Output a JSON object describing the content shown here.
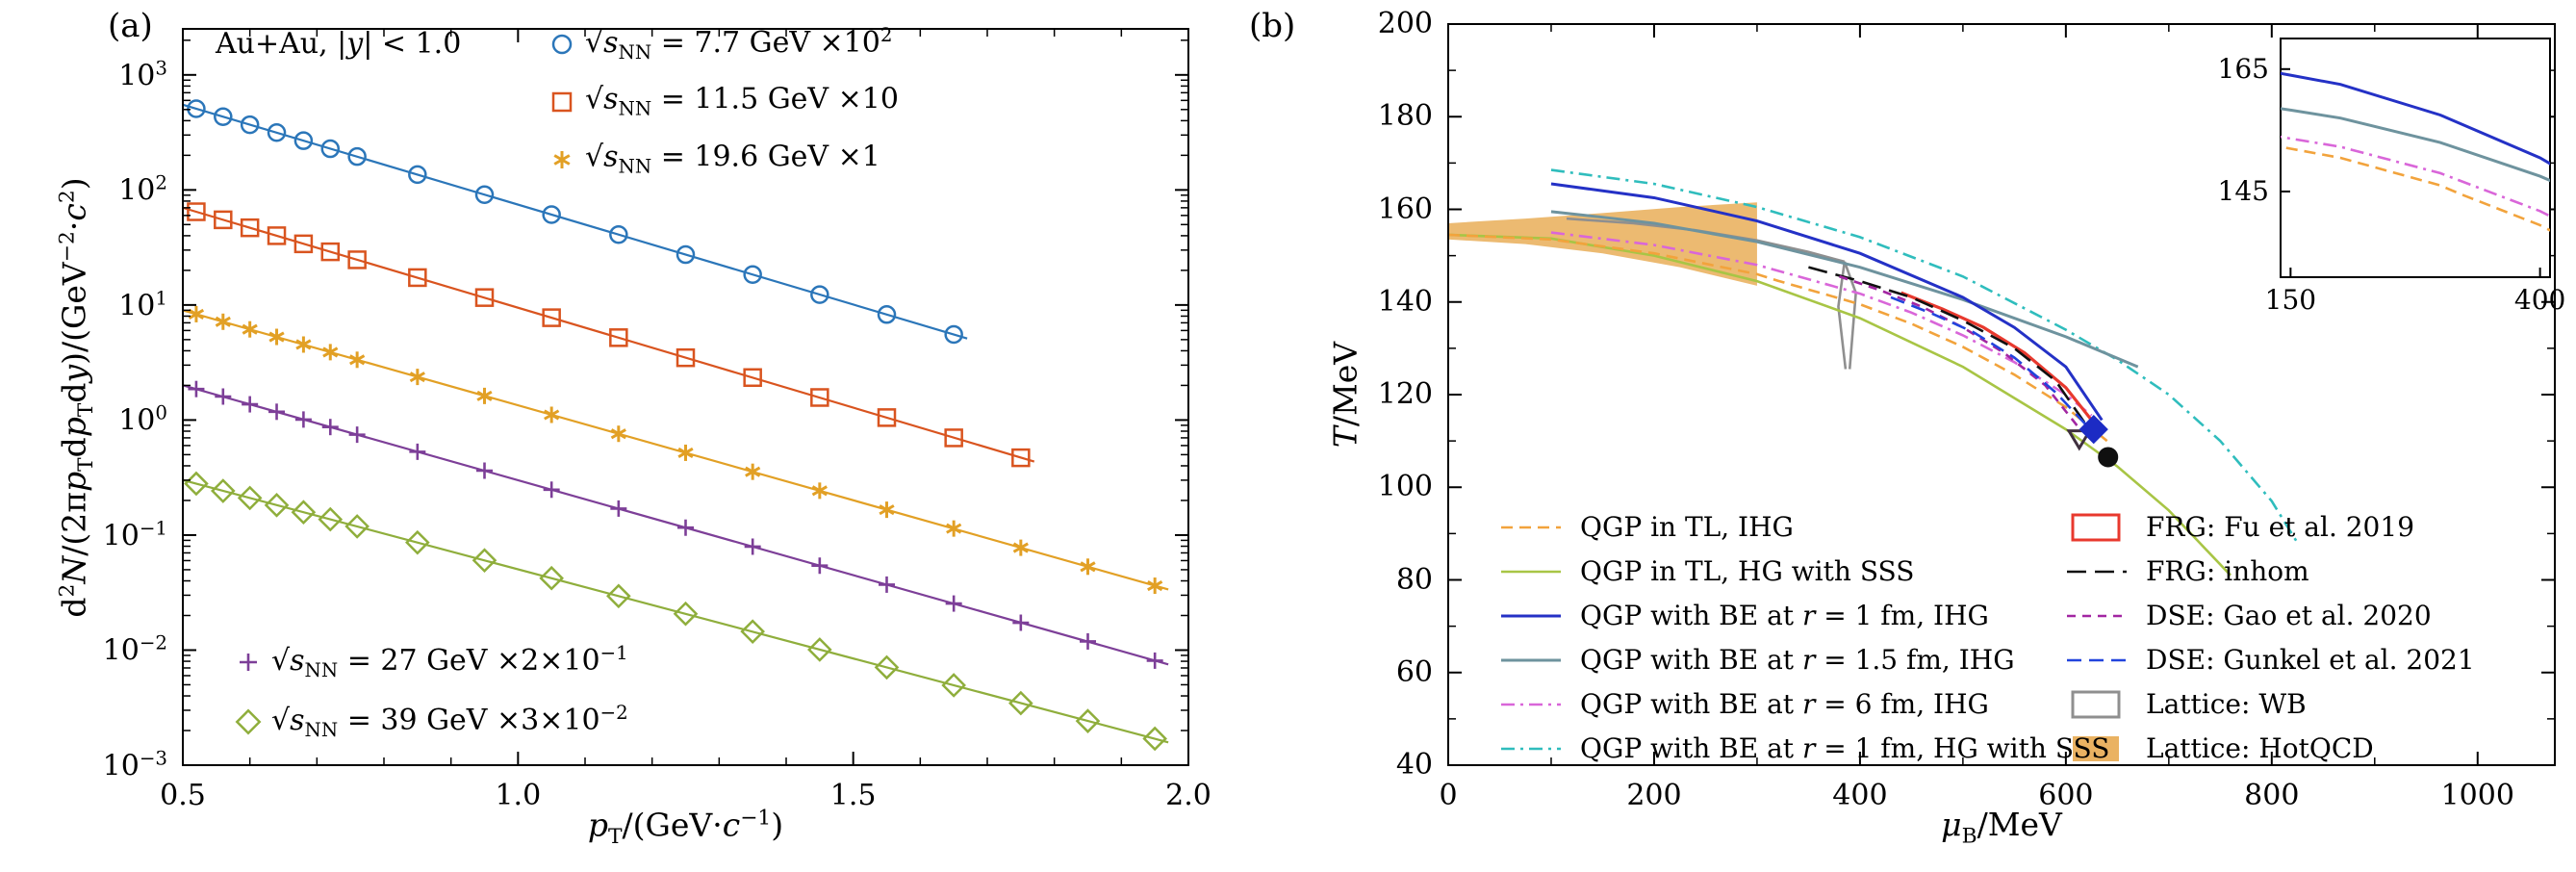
{
  "figure": {
    "panel_a_label": "(a)",
    "panel_b_label": "(b)"
  },
  "chart_data": [
    {
      "type": "scatter",
      "panel": "a",
      "annotation": "Au+Au, |*y*| < 1.0",
      "xlabel": "*p*_{T}/(GeV·*c*^{−1})",
      "ylabel": "d^{2}*N*/(2π*p*_{T}d*p*_{T}d*y*)/(GeV^{−2}·*c*^{2})",
      "xlim": [
        0.5,
        2.0
      ],
      "ylim_log10": [
        -3,
        3.4
      ],
      "grid": false,
      "xticks": [
        {
          "v": 0.5,
          "label": "0.5"
        },
        {
          "v": 1.0,
          "label": "1.0"
        },
        {
          "v": 1.5,
          "label": "1.5"
        },
        {
          "v": 2.0,
          "label": "2.0"
        }
      ],
      "yticks": [
        {
          "e": -3,
          "label": "10^{−3}"
        },
        {
          "e": -2,
          "label": "10^{−2}"
        },
        {
          "e": -1,
          "label": "10^{−1}"
        },
        {
          "e": 0,
          "label": "10^{0}"
        },
        {
          "e": 1,
          "label": "10^{1}"
        },
        {
          "e": 2,
          "label": "10^{2}"
        },
        {
          "e": 3,
          "label": "10^{3}"
        }
      ],
      "series": [
        {
          "key": "s77",
          "label": "√*s*_{NN} = 7.7 GeV ×10^{2}",
          "marker": "circle",
          "color": "#2b76b9",
          "x": [
            0.52,
            0.56,
            0.6,
            0.64,
            0.68,
            0.72,
            0.76,
            0.85,
            0.95,
            1.05,
            1.15,
            1.25,
            1.35,
            1.45,
            1.55,
            1.65
          ],
          "y": [
            508,
            433,
            369,
            315,
            268,
            228,
            195,
            136,
            91,
            61,
            40.9,
            27.4,
            18.4,
            12.3,
            8.26,
            5.54
          ],
          "fit": {
            "A": 4070,
            "b": 4.0,
            "x0": 0.5,
            "x1": 1.67
          }
        },
        {
          "key": "s115",
          "label": "√*s*_{NN} = 11.5 GeV ×10",
          "marker": "square",
          "color": "#d9541f",
          "x": [
            0.52,
            0.56,
            0.6,
            0.64,
            0.68,
            0.72,
            0.76,
            0.85,
            0.95,
            1.05,
            1.15,
            1.25,
            1.35,
            1.45,
            1.55,
            1.65,
            1.75
          ],
          "y": [
            64.6,
            55.0,
            46.9,
            40.0,
            34.0,
            29.0,
            24.7,
            17.3,
            11.6,
            7.75,
            5.2,
            3.48,
            2.34,
            1.57,
            1.05,
            0.7,
            0.47
          ],
          "fit": {
            "A": 517,
            "b": 4.0,
            "x0": 0.5,
            "x1": 1.77
          }
        },
        {
          "key": "s196",
          "label": "√*s*_{NN} = 19.6 GeV ×1",
          "marker": "asterisk",
          "color": "#e2a025",
          "x": [
            0.52,
            0.56,
            0.6,
            0.64,
            0.68,
            0.72,
            0.76,
            0.85,
            0.95,
            1.05,
            1.15,
            1.25,
            1.35,
            1.45,
            1.55,
            1.65,
            1.75,
            1.85,
            1.95
          ],
          "y": [
            8.32,
            7.15,
            6.14,
            5.28,
            4.53,
            3.89,
            3.34,
            2.37,
            1.62,
            1.11,
            0.759,
            0.519,
            0.355,
            0.243,
            0.166,
            0.114,
            0.0776,
            0.0531,
            0.0363
          ],
          "fit": {
            "A": 60,
            "b": 3.8,
            "x0": 0.5,
            "x1": 1.97
          }
        },
        {
          "key": "s27",
          "label": "√*s*_{NN} = 27 GeV ×2×10^{−1}",
          "marker": "plus",
          "color": "#7d3f98",
          "x": [
            0.52,
            0.56,
            0.6,
            0.64,
            0.68,
            0.72,
            0.76,
            0.85,
            0.95,
            1.05,
            1.15,
            1.25,
            1.35,
            1.45,
            1.55,
            1.65,
            1.75,
            1.85,
            1.95
          ],
          "y": [
            1.86,
            1.6,
            1.37,
            1.18,
            1.01,
            0.869,
            0.746,
            0.53,
            0.363,
            0.248,
            0.17,
            0.116,
            0.0793,
            0.0542,
            0.0371,
            0.0254,
            0.0173,
            0.0119,
            0.0081
          ],
          "fit": {
            "A": 13.4,
            "b": 3.8,
            "x0": 0.5,
            "x1": 1.97
          }
        },
        {
          "key": "s39",
          "label": "√*s*_{NN} = 39 GeV ×3×10^{−2}",
          "marker": "diamond",
          "color": "#8fae3c",
          "x": [
            0.52,
            0.56,
            0.6,
            0.64,
            0.68,
            0.72,
            0.76,
            0.85,
            0.95,
            1.05,
            1.15,
            1.25,
            1.35,
            1.45,
            1.55,
            1.65,
            1.75,
            1.85,
            1.95
          ],
          "y": [
            0.28,
            0.242,
            0.21,
            0.182,
            0.158,
            0.137,
            0.119,
            0.0862,
            0.0603,
            0.0422,
            0.0295,
            0.0207,
            0.0145,
            0.0101,
            0.00708,
            0.00495,
            0.00346,
            0.00242,
            0.0017
          ],
          "fit": {
            "A": 1.79,
            "b": 3.57,
            "x0": 0.5,
            "x1": 1.97
          }
        }
      ]
    },
    {
      "type": "line",
      "panel": "b",
      "xlabel": "*μ*_{B}/MeV",
      "ylabel": "*T*/MeV",
      "xlim": [
        0,
        1075
      ],
      "ylim": [
        40,
        200
      ],
      "grid": false,
      "xticks": [
        {
          "v": 0,
          "label": "0"
        },
        {
          "v": 200,
          "label": "200"
        },
        {
          "v": 400,
          "label": "400"
        },
        {
          "v": 600,
          "label": "600"
        },
        {
          "v": 800,
          "label": "800"
        },
        {
          "v": 1000,
          "label": "1000"
        }
      ],
      "yticks": [
        {
          "v": 40,
          "label": "40"
        },
        {
          "v": 60,
          "label": "60"
        },
        {
          "v": 80,
          "label": "80"
        },
        {
          "v": 100,
          "label": "100"
        },
        {
          "v": 120,
          "label": "120"
        },
        {
          "v": 140,
          "label": "140"
        },
        {
          "v": 160,
          "label": "160"
        },
        {
          "v": 180,
          "label": "180"
        },
        {
          "v": 200,
          "label": "200"
        }
      ],
      "series": [
        {
          "key": "qgp_tl_ihg",
          "label": "QGP in TL, IHG",
          "color": "#f2a33c",
          "dash": [
            12,
            7
          ],
          "width": 2.6,
          "sample": "line",
          "points": [
            [
              0,
              154.5
            ],
            [
              100,
              153.5
            ],
            [
              200,
              150.5
            ],
            [
              300,
              146
            ],
            [
              320,
              144.6
            ],
            [
              400,
              139.5
            ],
            [
              450,
              135.3
            ],
            [
              500,
              130.3
            ],
            [
              550,
              124.3
            ],
            [
              600,
              117.3
            ],
            [
              640,
              110
            ]
          ]
        },
        {
          "key": "qgp_tl_hg_sss",
          "label": "QGP in TL, HG with SSS",
          "color": "#a8c545",
          "dash": null,
          "width": 2.6,
          "sample": "line",
          "points": [
            [
              0,
              154.5
            ],
            [
              100,
              153.7
            ],
            [
              200,
              150
            ],
            [
              300,
              144.5
            ],
            [
              400,
              136.5
            ],
            [
              500,
              126
            ],
            [
              600,
              112.5
            ],
            [
              650,
              104.5
            ],
            [
              700,
              95
            ],
            [
              760,
              81
            ]
          ]
        },
        {
          "key": "qgp_be_r1_ihg",
          "label": "QGP with BE at *r* = 1 fm, IHG",
          "color": "#2431c6",
          "dash": null,
          "width": 3,
          "sample": "line",
          "points": [
            [
              100,
              165.5
            ],
            [
              150,
              164
            ],
            [
              200,
              162.5
            ],
            [
              300,
              157.5
            ],
            [
              400,
              150.5
            ],
            [
              500,
              141
            ],
            [
              550,
              134.5
            ],
            [
              600,
              126
            ],
            [
              635,
              114.5
            ]
          ]
        },
        {
          "key": "qgp_be_r15_ihg",
          "label": "QGP with BE at *r* = 1.5 fm, IHG",
          "color": "#6e939e",
          "dash": null,
          "width": 3,
          "sample": "line",
          "points": [
            [
              100,
              159.5
            ],
            [
              150,
              158.3
            ],
            [
              200,
              157
            ],
            [
              300,
              153
            ],
            [
              400,
              147.5
            ],
            [
              500,
              140.5
            ],
            [
              600,
              132.5
            ],
            [
              670,
              126
            ]
          ]
        },
        {
          "key": "qgp_be_r6_ihg",
          "label": "QGP with BE at *r* = 6 fm, IHG",
          "color": "#d966d9",
          "dash": [
            14,
            6,
            3,
            6
          ],
          "width": 2.6,
          "sample": "line",
          "points": [
            [
              100,
              155
            ],
            [
              200,
              152.3
            ],
            [
              300,
              148
            ],
            [
              400,
              141.8
            ],
            [
              450,
              137.7
            ],
            [
              500,
              132.8
            ],
            [
              550,
              127
            ],
            [
              600,
              120
            ],
            [
              625,
              115.5
            ]
          ]
        },
        {
          "key": "qgp_be_r1_hg_sss",
          "label": "QGP with BE at *r* = 1 fm, HG with SSS",
          "color": "#2fbdbd",
          "dash": [
            14,
            6,
            3,
            6
          ],
          "width": 2.6,
          "sample": "line",
          "points": [
            [
              100,
              168.5
            ],
            [
              200,
              165.5
            ],
            [
              300,
              160.5
            ],
            [
              400,
              154
            ],
            [
              500,
              145.5
            ],
            [
              600,
              134
            ],
            [
              650,
              127.5
            ],
            [
              700,
              120
            ],
            [
              750,
              110
            ],
            [
              800,
              97
            ],
            [
              825,
              88
            ]
          ]
        },
        {
          "key": "frg_fu",
          "label": "FRG: Fu et al. 2019",
          "color": "#e8392e",
          "dash": null,
          "width": 3.2,
          "sample": "rect",
          "points": [
            [
              440,
              142
            ],
            [
              480,
              138.5
            ],
            [
              520,
              134.5
            ],
            [
              560,
              129
            ],
            [
              600,
              121.5
            ],
            [
              625,
              114.5
            ]
          ]
        },
        {
          "key": "frg_inhom",
          "label": "FRG: inhom",
          "color": "#111111",
          "dash": [
            20,
            9
          ],
          "width": 2.6,
          "sample": "line",
          "points": [
            [
              350,
              147.5
            ],
            [
              400,
              144.5
            ],
            [
              450,
              141
            ],
            [
              500,
              136
            ],
            [
              550,
              130
            ],
            [
              590,
              123
            ],
            [
              618,
              114
            ]
          ]
        },
        {
          "key": "dse_gao",
          "label": "DSE: Gao et al. 2020",
          "color": "#a226a2",
          "dash": [
            9,
            7
          ],
          "width": 2.6,
          "sample": "line",
          "points": [
            [
              380,
              145.5
            ],
            [
              420,
              142.5
            ],
            [
              460,
              139
            ],
            [
              500,
              134.5
            ],
            [
              540,
              129
            ],
            [
              580,
              122
            ],
            [
              612,
              113
            ]
          ]
        },
        {
          "key": "dse_gunkel",
          "label": "DSE: Gunkel et al. 2021",
          "color": "#2244dd",
          "dash": [
            15,
            8
          ],
          "width": 2.6,
          "sample": "line",
          "points": [
            [
              430,
              141
            ],
            [
              470,
              137.5
            ],
            [
              510,
              133.5
            ],
            [
              550,
              128
            ],
            [
              590,
              120.5
            ],
            [
              628,
              111.5
            ]
          ]
        },
        {
          "key": "lattice_wb",
          "label": "Lattice: WB",
          "color": "#8f8f8f",
          "dash": null,
          "width": 2.6,
          "sample": "rect",
          "points": [
            [
              115,
              158
            ],
            [
              180,
              157
            ],
            [
              240,
              155.5
            ],
            [
              300,
              153.3
            ],
            [
              350,
              150.8
            ],
            [
              385,
              148.7
            ]
          ],
          "funnel": [
            [
              [
                385,
                148.7
              ],
              [
                379,
                139
              ],
              [
                386,
                125.5
              ]
            ],
            [
              [
                385,
                148.7
              ],
              [
                396,
                142
              ],
              [
                390,
                125.5
              ]
            ]
          ]
        },
        {
          "key": "lattice_hotqcd",
          "label": "Lattice: HotQCD",
          "color": "#eab262",
          "dash": null,
          "width": 2.6,
          "sample": "fillrect",
          "points": [],
          "band": [
            [
              0,
              157
            ],
            [
              75,
              158
            ],
            [
              150,
              159.2
            ],
            [
              225,
              160.5
            ],
            [
              300,
              161.5
            ],
            [
              300,
              143.5
            ],
            [
              225,
              147.5
            ],
            [
              150,
              150.5
            ],
            [
              75,
              152.5
            ],
            [
              0,
              153.5
            ]
          ]
        }
      ],
      "markers": [
        {
          "shape": "triangle-down",
          "filled": false,
          "color": "#40303f",
          "x": 613,
          "y": 110.5
        },
        {
          "shape": "circle",
          "filled": true,
          "color": "#101010",
          "x": 641,
          "y": 106.5
        },
        {
          "shape": "diamond",
          "filled": true,
          "color": "#1c2bc4",
          "x": 627,
          "y": 112.5
        }
      ],
      "legend_left": [
        "qgp_tl_ihg",
        "qgp_tl_hg_sss",
        "qgp_be_r1_ihg",
        "qgp_be_r15_ihg",
        "qgp_be_r6_ihg",
        "qgp_be_r1_hg_sss"
      ],
      "legend_right": [
        "frg_fu",
        "frg_inhom",
        "dse_gao",
        "dse_gunkel",
        "lattice_wb",
        "lattice_hotqcd"
      ],
      "inset": {
        "xlim": [
          140,
          410
        ],
        "ylim": [
          131,
          170
        ],
        "xticks": [
          {
            "v": 150,
            "label": "150"
          },
          {
            "v": 400,
            "label": "400"
          }
        ],
        "yticks": [
          {
            "v": 145,
            "label": "145"
          },
          {
            "v": 165,
            "label": "165"
          }
        ],
        "series": [
          "qgp_be_r1_ihg",
          "qgp_be_r15_ihg",
          "qgp_be_r6_ihg",
          "qgp_tl_ihg"
        ]
      }
    }
  ]
}
